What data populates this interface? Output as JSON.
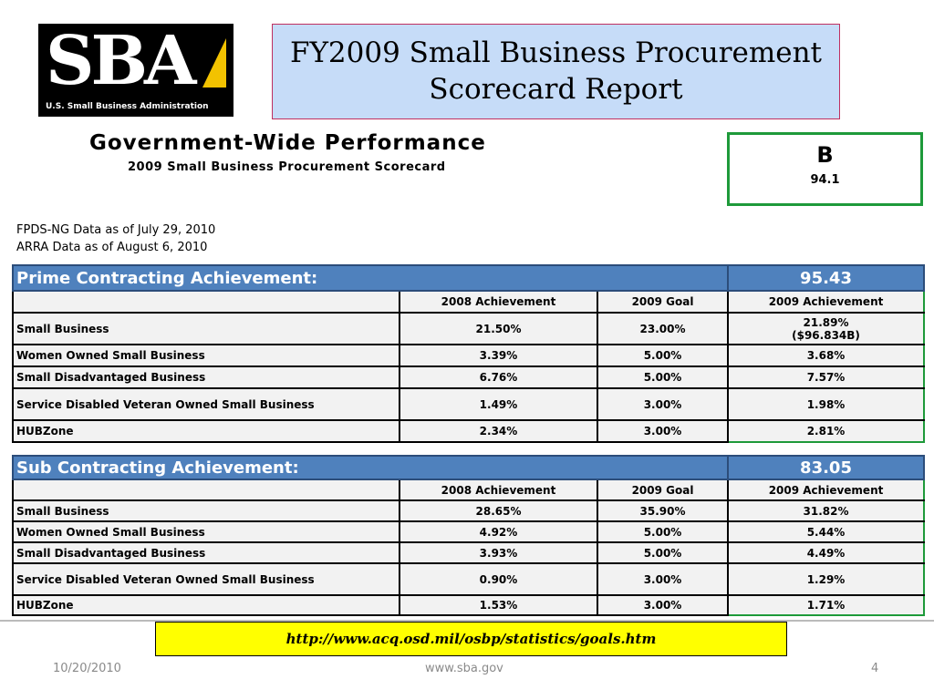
{
  "logo": {
    "letters": "SBA",
    "subtitle": "U.S. Small Business Administration"
  },
  "title": {
    "line1": "FY2009 Small Business Procurement",
    "line2": "Scorecard Report"
  },
  "heading": {
    "main": "Government-Wide Performance",
    "sub": "2009 Small Business Procurement Scorecard"
  },
  "grade": {
    "letter": "B",
    "score": "94.1"
  },
  "sources": {
    "fpds": "FPDS-NG Data as of July 29, 2010",
    "arra": "ARRA Data as of August 6, 2010"
  },
  "prime": {
    "title": "Prime Contracting Achievement:",
    "score": "95.43",
    "headers": [
      "2008 Achievement",
      "2009 Goal",
      "2009 Achievement"
    ],
    "rows": [
      {
        "label": "Small Business",
        "a2008": "21.50%",
        "goal": "23.00%",
        "a2009": "21.89%",
        "a2009_note": "($96.834B)"
      },
      {
        "label": "Women Owned Small Business",
        "a2008": "3.39%",
        "goal": "5.00%",
        "a2009": "3.68%"
      },
      {
        "label": "Small Disadvantaged Business",
        "a2008": "6.76%",
        "goal": "5.00%",
        "a2009": "7.57%"
      },
      {
        "label": "Service Disabled Veteran Owned Small Business",
        "a2008": "1.49%",
        "goal": "3.00%",
        "a2009": "1.98%"
      },
      {
        "label": "HUBZone",
        "a2008": "2.34%",
        "goal": "3.00%",
        "a2009": "2.81%"
      }
    ]
  },
  "sub": {
    "title": "Sub Contracting Achievement:",
    "score": "83.05",
    "headers": [
      "2008 Achievement",
      "2009 Goal",
      "2009 Achievement"
    ],
    "rows": [
      {
        "label": "Small Business",
        "a2008": "28.65%",
        "goal": "35.90%",
        "a2009": "31.82%"
      },
      {
        "label": "Women Owned Small Business",
        "a2008": "4.92%",
        "goal": "5.00%",
        "a2009": "5.44%"
      },
      {
        "label": "Small Disadvantaged Business",
        "a2008": "3.93%",
        "goal": "5.00%",
        "a2009": "4.49%"
      },
      {
        "label": "Service Disabled Veteran Owned Small Business",
        "a2008": "0.90%",
        "goal": "3.00%",
        "a2009": "1.29%"
      },
      {
        "label": "HUBZone",
        "a2008": "1.53%",
        "goal": "3.00%",
        "a2009": "1.71%"
      }
    ]
  },
  "link": "http://www.acq.osd.mil/osbp/statistics/goals.htm",
  "footer": {
    "date": "10/20/2010",
    "site": "www.sba.gov",
    "page": "4"
  },
  "colors": {
    "section_header": "#4f81bd",
    "title_bg": "#c6dcf8",
    "highlight_border": "#1e9a3a",
    "link_bg": "#ffff00"
  }
}
